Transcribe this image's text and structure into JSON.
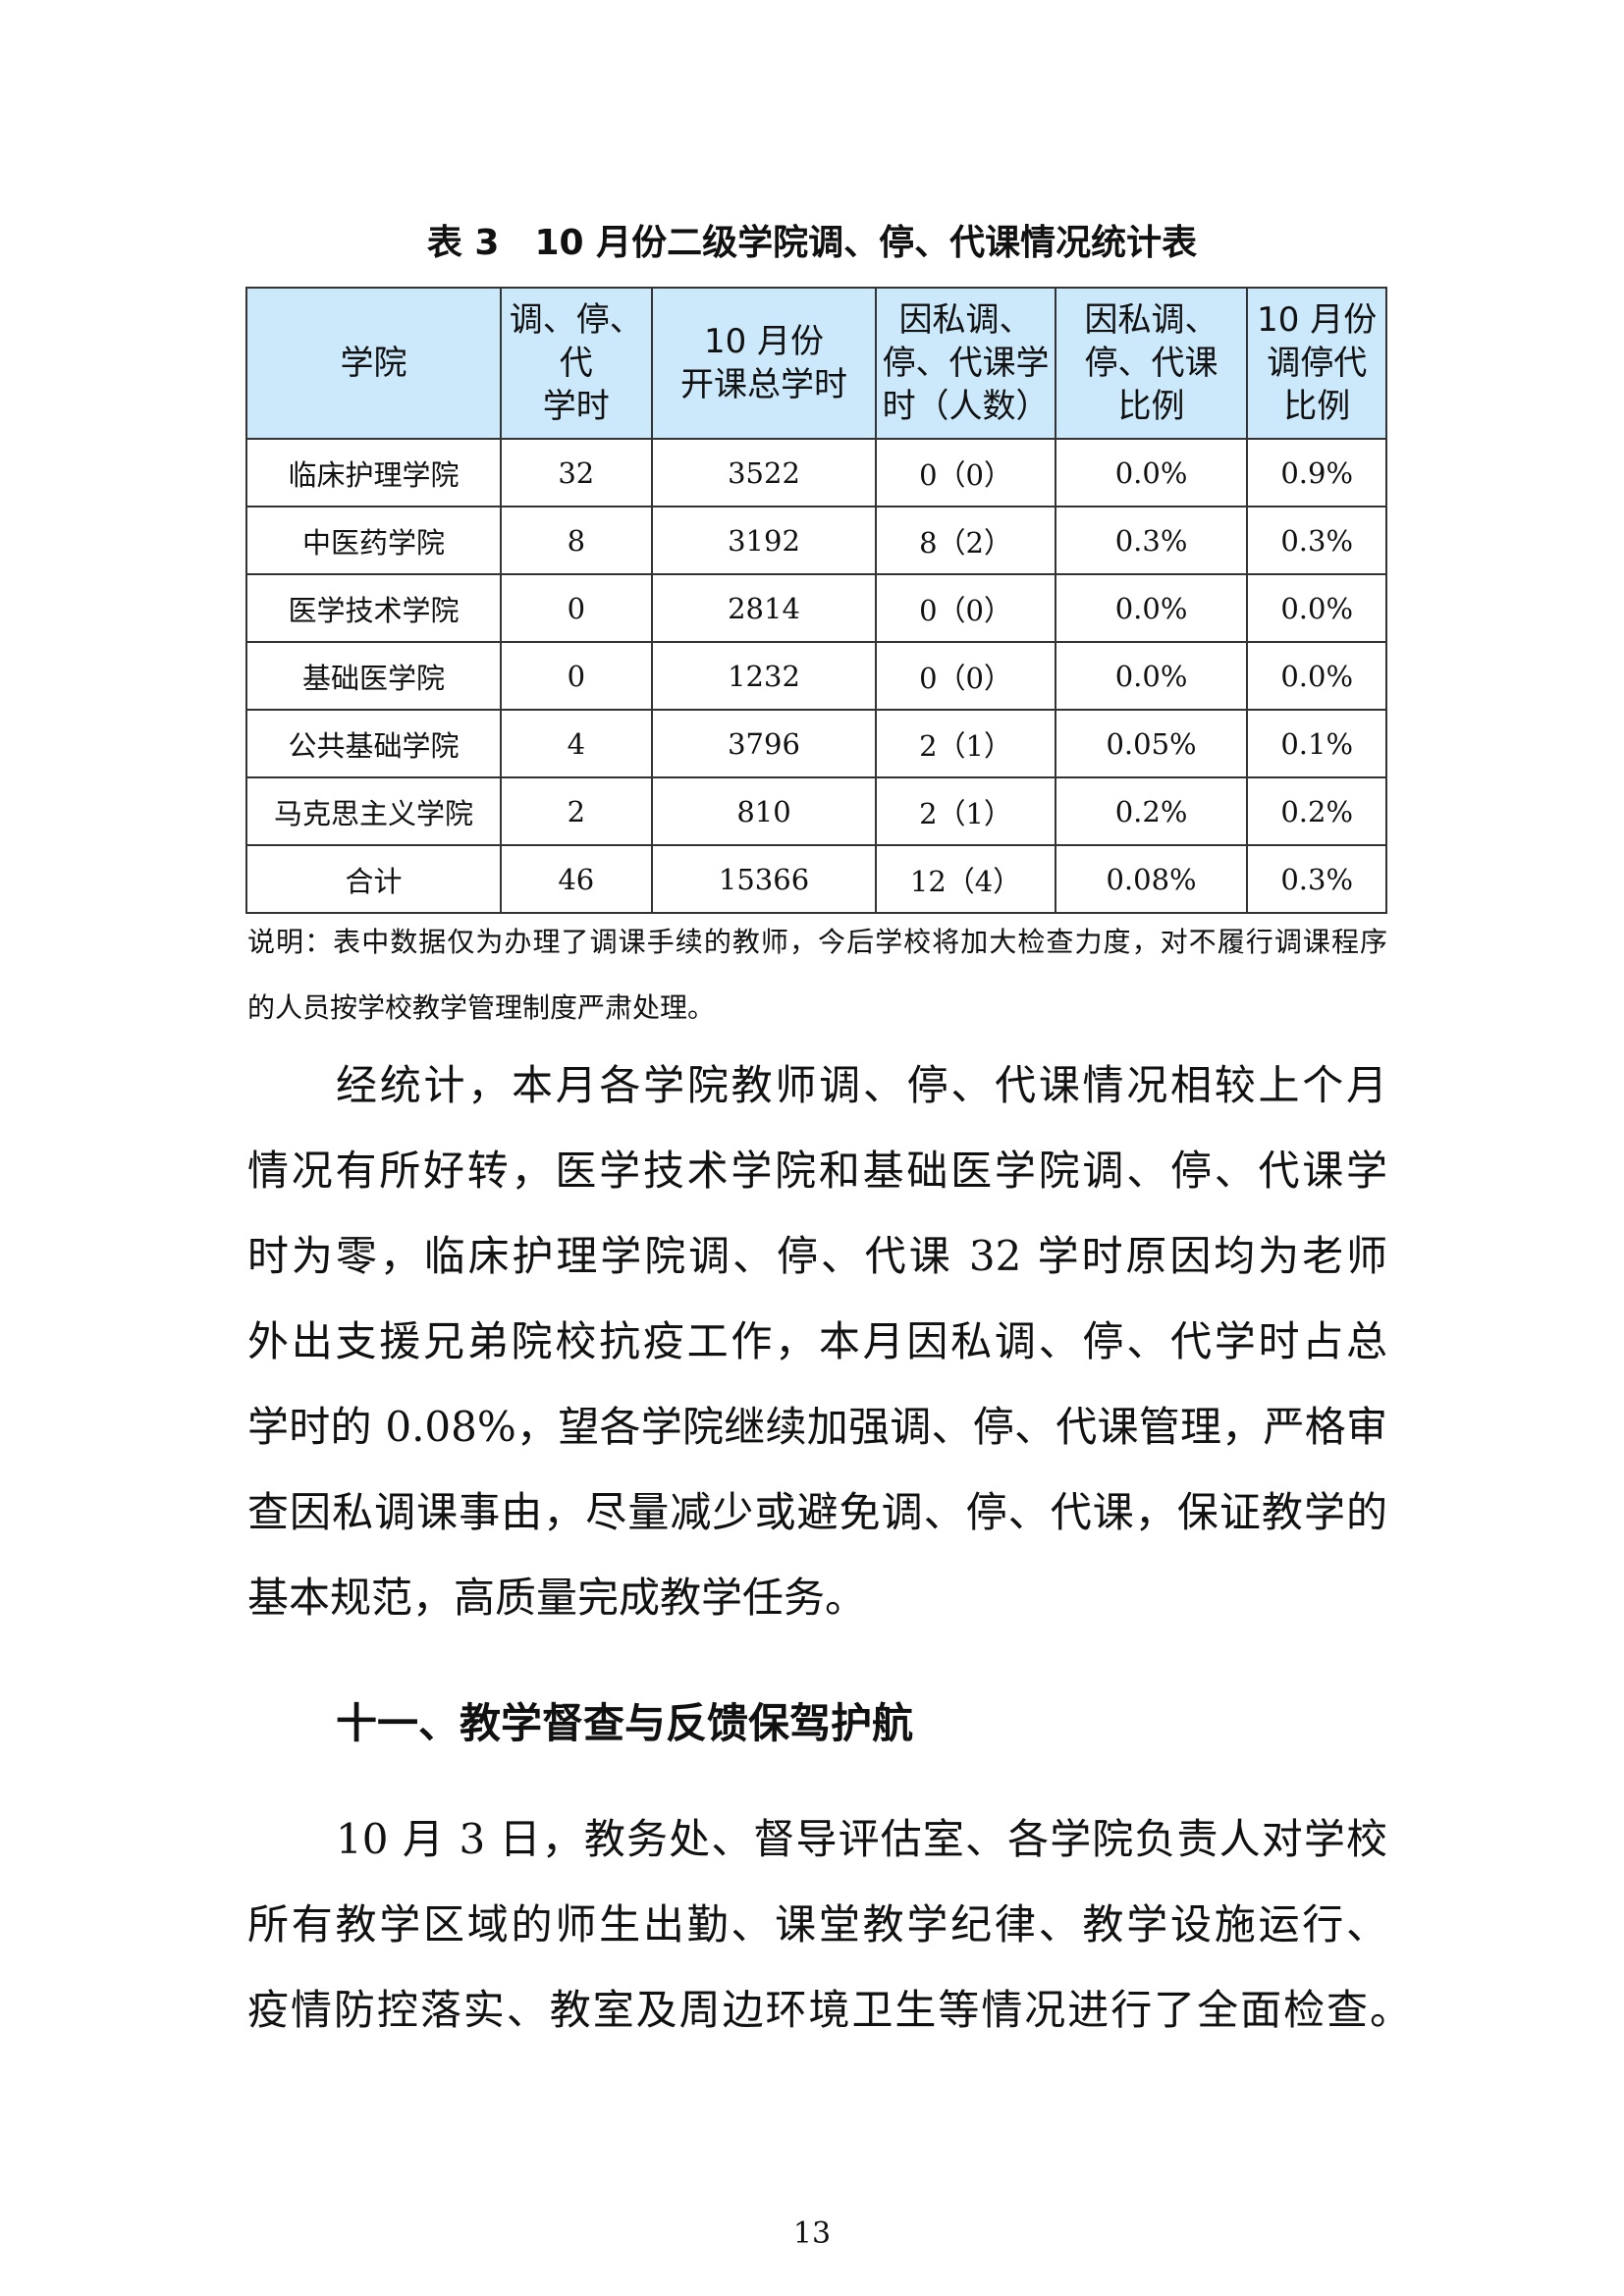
{
  "table": {
    "title": "表 3　10 月份二级学院调、停、代课情况统计表",
    "header_color": "#cce9fb",
    "columns": [
      [
        "学院"
      ],
      [
        "调、停、",
        "代",
        "学时"
      ],
      [
        "10 月份",
        "开课总学时"
      ],
      [
        "因私调、",
        "停、代课学",
        "时（人数）"
      ],
      [
        "因私调、",
        "停、代课",
        "比例"
      ],
      [
        "10 月份",
        "调停代",
        "比例"
      ]
    ],
    "rows": [
      [
        "临床护理学院",
        "32",
        "3522",
        "0（0）",
        "0.0%",
        "0.9%"
      ],
      [
        "中医药学院",
        "8",
        "3192",
        "8（2）",
        "0.3%",
        "0.3%"
      ],
      [
        "医学技术学院",
        "0",
        "2814",
        "0（0）",
        "0.0%",
        "0.0%"
      ],
      [
        "基础医学院",
        "0",
        "1232",
        "0（0）",
        "0.0%",
        "0.0%"
      ],
      [
        "公共基础学院",
        "4",
        "3796",
        "2（1）",
        "0.05%",
        "0.1%"
      ],
      [
        "马克思主义学院",
        "2",
        "810",
        "2（1）",
        "0.2%",
        "0.2%"
      ],
      [
        "合计",
        "46",
        "15366",
        "12（4）",
        "0.08%",
        "0.3%"
      ]
    ]
  },
  "note": [
    "说明：表中数据仅为办理了调课手续的教师，今后学校将加大检查力度，对不履行调课程序",
    "的人员按学校教学管理制度严肃处理。"
  ],
  "paragraph1": [
    "经统计，本月各学院教师调、停、代课情况相较上个月",
    "情况有所好转，医学技术学院和基础医学院调、停、代课学",
    "时为零，临床护理学院调、停、代课 32 学时原因均为老师",
    "外出支援兄弟院校抗疫工作，本月因私调、停、代学时占总",
    "学时的 0.08%，望各学院继续加强调、停、代课管理，严格审",
    "查因私调课事由，尽量减少或避免调、停、代课，保证教学的",
    "基本规范，高质量完成教学任务。"
  ],
  "section_heading": "十一、教学督查与反馈保驾护航",
  "paragraph2": [
    "10 月 3 日，教务处、督导评估室、各学院负责人对学校",
    "所有教学区域的师生出勤、课堂教学纪律、教学设施运行、",
    "疫情防控落实、教室及周边环境卫生等情况进行了全面检查。"
  ],
  "page_number": "13"
}
